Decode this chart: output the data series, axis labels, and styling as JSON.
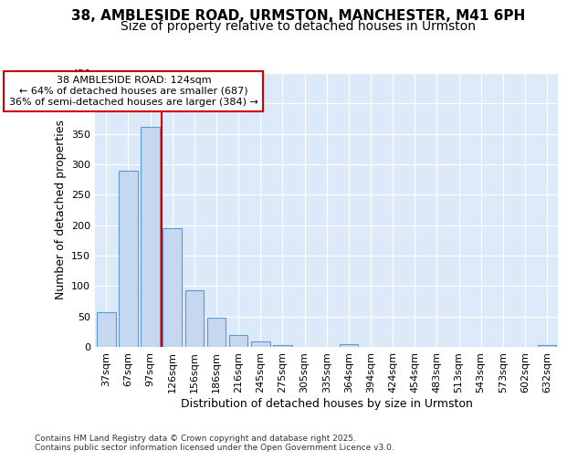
{
  "title1": "38, AMBLESIDE ROAD, URMSTON, MANCHESTER, M41 6PH",
  "title2": "Size of property relative to detached houses in Urmston",
  "xlabel": "Distribution of detached houses by size in Urmston",
  "ylabel": "Number of detached properties",
  "bar_labels": [
    "37sqm",
    "67sqm",
    "97sqm",
    "126sqm",
    "156sqm",
    "186sqm",
    "216sqm",
    "245sqm",
    "275sqm",
    "305sqm",
    "335sqm",
    "364sqm",
    "394sqm",
    "424sqm",
    "454sqm",
    "483sqm",
    "513sqm",
    "543sqm",
    "573sqm",
    "602sqm",
    "632sqm"
  ],
  "bar_values": [
    57,
    290,
    362,
    195,
    93,
    48,
    20,
    9,
    3,
    0,
    0,
    4,
    0,
    0,
    0,
    0,
    0,
    0,
    0,
    0,
    3
  ],
  "bar_color": "#c5d8f0",
  "bar_edge_color": "#5b9bd5",
  "vline_color": "#cc0000",
  "annotation_line1": "38 AMBLESIDE ROAD: 124sqm",
  "annotation_line2": "← 64% of detached houses are smaller (687)",
  "annotation_line3": "36% of semi-detached houses are larger (384) →",
  "annotation_box_color": "#cc0000",
  "ylim": [
    0,
    450
  ],
  "yticks": [
    0,
    50,
    100,
    150,
    200,
    250,
    300,
    350,
    400,
    450
  ],
  "footnote": "Contains HM Land Registry data © Crown copyright and database right 2025.\nContains public sector information licensed under the Open Government Licence v3.0.",
  "fig_bg_color": "#ffffff",
  "plot_bg_color": "#dce9f8",
  "grid_color": "#ffffff",
  "title1_fontsize": 11,
  "title2_fontsize": 10,
  "axis_fontsize": 9,
  "tick_fontsize": 8,
  "annot_fontsize": 8
}
